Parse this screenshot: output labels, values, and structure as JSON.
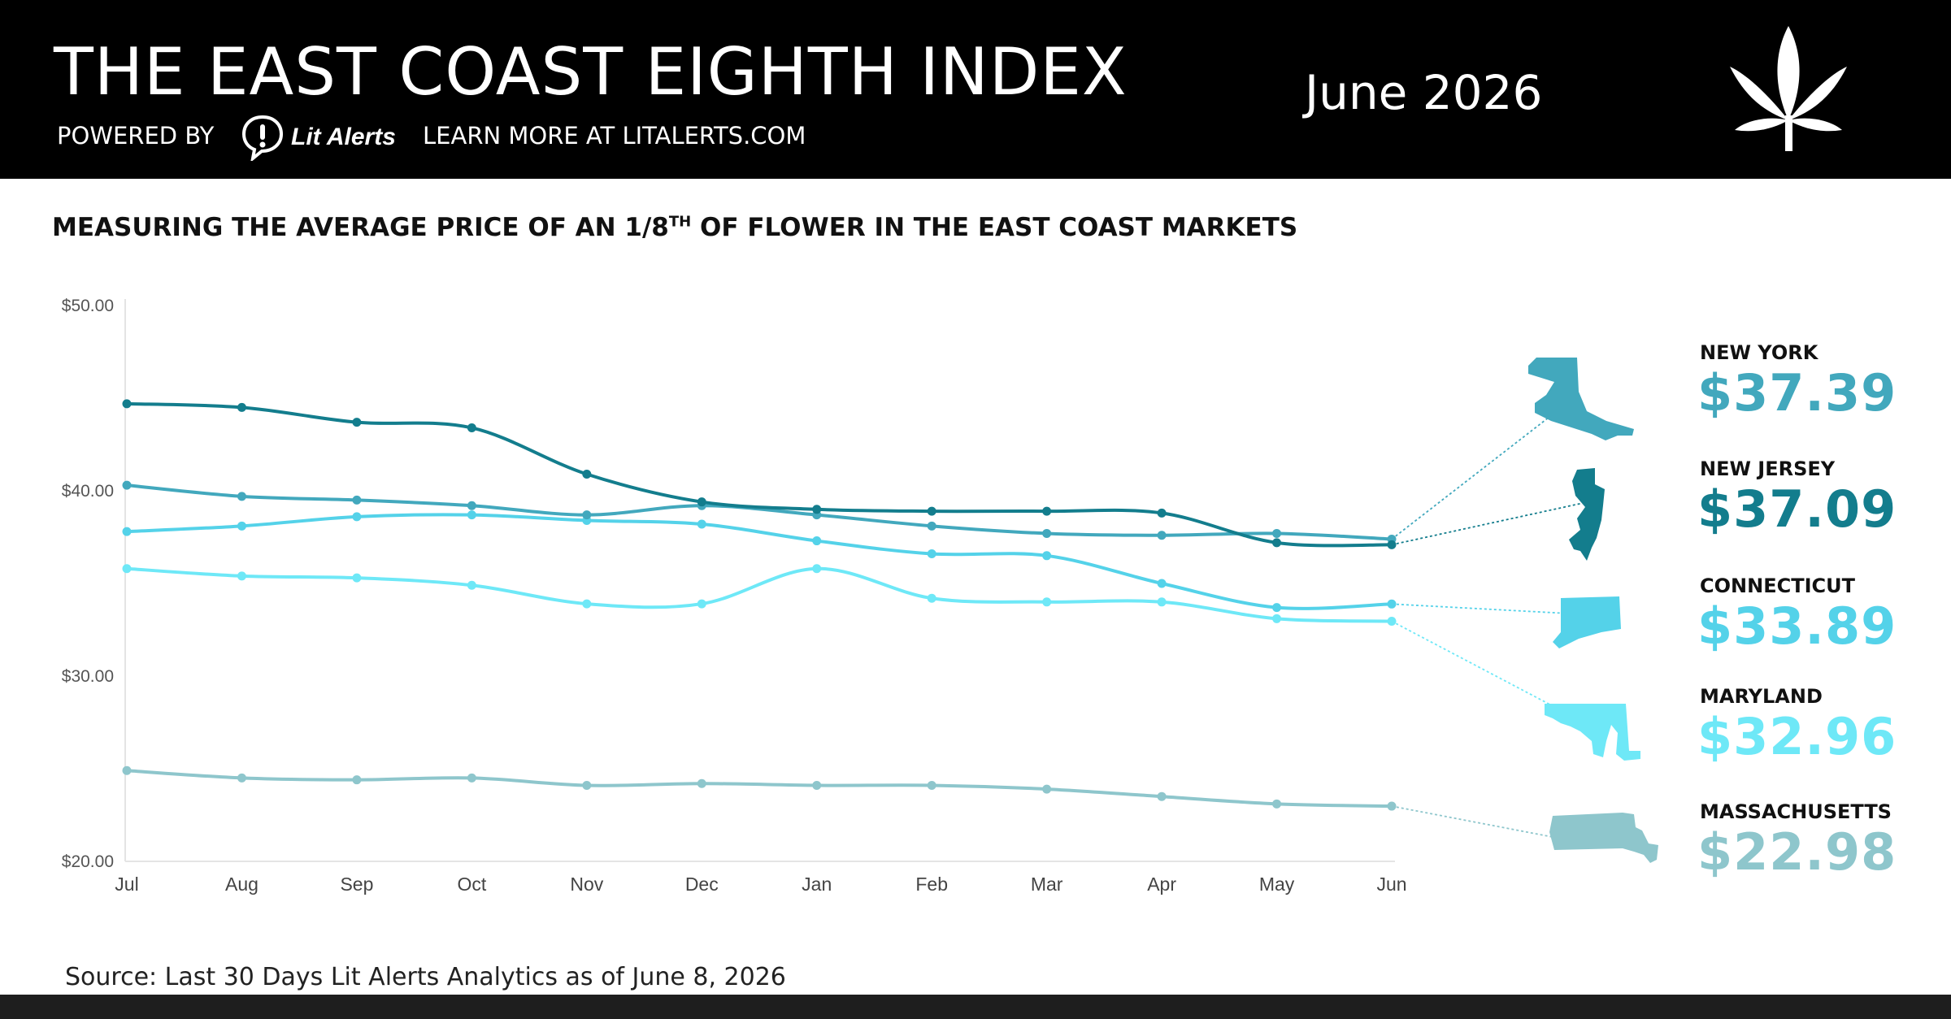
{
  "header": {
    "title": "THE EAST COAST EIGHTH INDEX",
    "powered_by": "POWERED BY",
    "brand": "Lit Alerts",
    "learn_more": "LEARN MORE AT LITALERTS.COM",
    "date": "June 2026",
    "brand_icon": "exclamation-bubble-icon",
    "logo_icon": "cannabis-leaf-icon"
  },
  "subtitle": {
    "main": "MEASURING THE AVERAGE PRICE OF AN 1/8",
    "sup": "TH",
    "rest": " OF FLOWER IN THE EAST COAST MARKETS"
  },
  "source": "Source: Last 30 Days Lit Alerts Analytics as of June 8, 2026",
  "chart_data": {
    "type": "line",
    "categories": [
      "Jul",
      "Aug",
      "Sep",
      "Oct",
      "Nov",
      "Dec",
      "Jan",
      "Feb",
      "Mar",
      "Apr",
      "May",
      "Jun"
    ],
    "ylim": [
      20,
      50
    ],
    "yticks": [
      "$20.00",
      "$30.00",
      "$40.00",
      "$50.00"
    ],
    "ytick_values": [
      20,
      30,
      40,
      50
    ],
    "grid": false,
    "series": [
      {
        "name": "NEW YORK",
        "label": "$37.39",
        "color": "#42a8bd",
        "icon": "new-york-state-icon",
        "values": [
          40.3,
          39.7,
          39.5,
          39.2,
          38.7,
          39.2,
          38.7,
          38.1,
          37.7,
          37.6,
          37.7,
          37.39
        ]
      },
      {
        "name": "NEW JERSEY",
        "label": "$37.09",
        "color": "#137d8d",
        "icon": "new-jersey-state-icon",
        "values": [
          44.7,
          44.5,
          43.7,
          43.4,
          40.9,
          39.4,
          39.0,
          38.9,
          38.9,
          38.8,
          37.2,
          37.09
        ]
      },
      {
        "name": "CONNECTICUT",
        "label": "$33.89",
        "color": "#54d2e9",
        "icon": "connecticut-state-icon",
        "values": [
          37.8,
          38.1,
          38.6,
          38.7,
          38.4,
          38.2,
          37.3,
          36.6,
          36.5,
          35.0,
          33.7,
          33.89
        ]
      },
      {
        "name": "MARYLAND",
        "label": "$32.96",
        "color": "#6ee8f7",
        "icon": "maryland-state-icon",
        "values": [
          35.8,
          35.4,
          35.3,
          34.9,
          33.9,
          33.9,
          35.8,
          34.2,
          34.0,
          34.0,
          33.1,
          32.96
        ]
      },
      {
        "name": "MASSACHUSETTS",
        "label": "$22.98",
        "color": "#8ec6cc",
        "icon": "massachusetts-state-icon",
        "values": [
          24.9,
          24.5,
          24.4,
          24.5,
          24.1,
          24.2,
          24.1,
          24.1,
          23.9,
          23.5,
          23.1,
          22.98
        ]
      }
    ]
  }
}
